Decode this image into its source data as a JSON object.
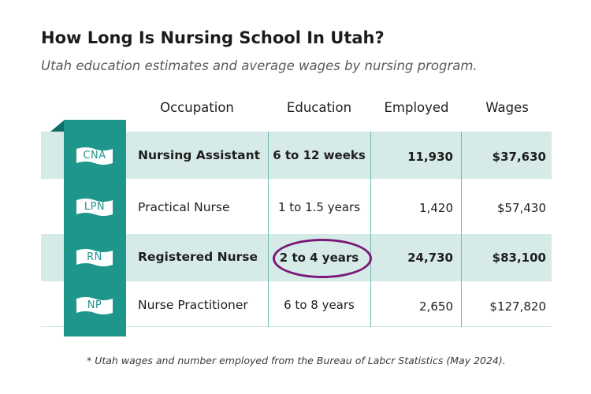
{
  "title": "How Long Is Nursing School In Utah?",
  "subtitle": "Utah education estimates and average wages by nursing program.",
  "footnote": "* Utah wages and number employed from the Bureau of Labcr Statistics (May 2024).",
  "colors": {
    "accent": "#1f968c",
    "row_shade": "#d6ebe8",
    "highlight": "#7b1878"
  },
  "chart_data": {
    "type": "table",
    "columns": [
      "Occupation",
      "Education",
      "Employed",
      "Wages"
    ],
    "rows": [
      {
        "badge": "CNA",
        "occupation": "Nursing Assistant",
        "education": "6 to 12 weeks",
        "employed": "11,930",
        "wages": "$37,630",
        "shaded": true,
        "bold": true
      },
      {
        "badge": "LPN",
        "occupation": "Practical Nurse",
        "education": "1 to 1.5 years",
        "employed": "1,420",
        "wages": "$57,430",
        "shaded": false,
        "bold": false
      },
      {
        "badge": "RN",
        "occupation": "Registered Nurse",
        "education": "2 to 4 years",
        "employed": "24,730",
        "wages": "$83,100",
        "shaded": true,
        "bold": true,
        "highlighted": true
      },
      {
        "badge": "NP",
        "occupation": "Nurse Practitioner",
        "education": "6 to 8 years",
        "employed": "2,650",
        "wages": "$127,820",
        "shaded": false,
        "bold": false
      }
    ]
  }
}
